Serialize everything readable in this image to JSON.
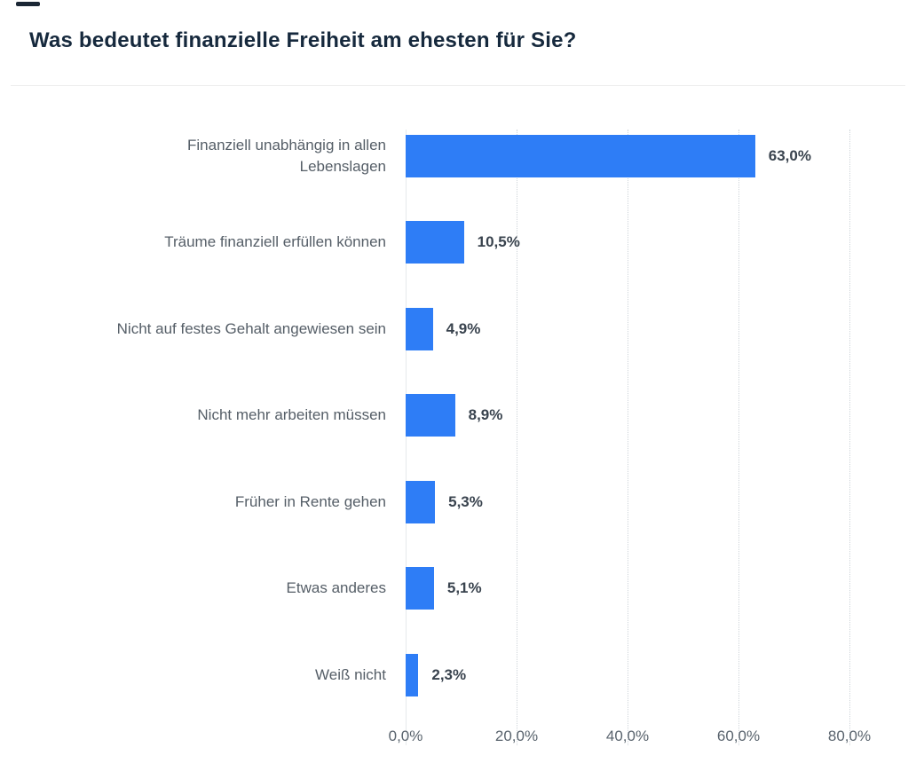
{
  "page": {
    "title": "Was bedeutet finanzielle Freiheit am ehesten für Sie?"
  },
  "chart_data": {
    "type": "bar",
    "orientation": "horizontal",
    "title": "Was bedeutet finanzielle Freiheit am ehesten für Sie?",
    "categories": [
      "Finanziell unabhängig in allen Lebenslagen",
      "Träume finanziell erfüllen können",
      "Nicht auf festes Gehalt angewiesen sein",
      "Nicht mehr arbeiten müssen",
      "Früher in Rente gehen",
      "Etwas anderes",
      "Weiß nicht"
    ],
    "values": [
      63.0,
      10.5,
      4.9,
      8.9,
      5.3,
      5.1,
      2.3
    ],
    "value_labels": [
      "63,0%",
      "10,5%",
      "4,9%",
      "8,9%",
      "5,3%",
      "5,1%",
      "2,3%"
    ],
    "xlabel": "",
    "ylabel": "",
    "xlim": [
      0,
      80
    ],
    "x_ticks": [
      0,
      20,
      40,
      60,
      80
    ],
    "x_tick_labels": [
      "0,0%",
      "20,0%",
      "40,0%",
      "60,0%",
      "80,0%"
    ],
    "grid": "vertical-dotted",
    "legend_position": "none",
    "bar_color": "#2e7df6"
  },
  "style": {
    "bar_color": "#2e7df6",
    "title_color": "#16293d",
    "category_label_color": "#555e67",
    "value_label_color": "#39434e",
    "tick_label_color": "#5a646e",
    "gridline_color": "#cfd5da",
    "axis_line_color": "#e6e9ec",
    "divider_color": "#ededed",
    "background_color": "#ffffff"
  }
}
